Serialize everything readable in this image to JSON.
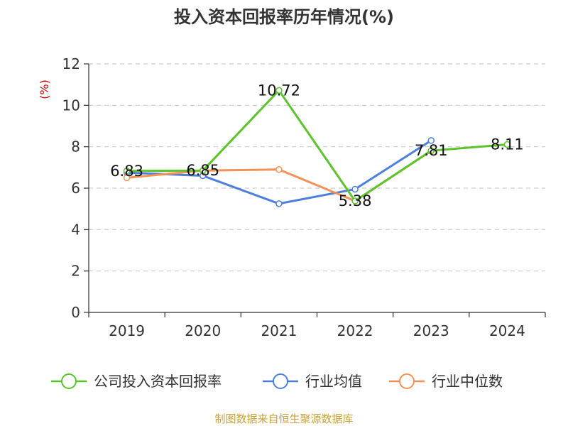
{
  "chart_data": {
    "type": "line",
    "title": "投入资本回报率历年情况(%)",
    "ylabel": "(%)",
    "xlabel": "",
    "categories": [
      "2019",
      "2020",
      "2021",
      "2022",
      "2023",
      "2024"
    ],
    "ylim": [
      0,
      12
    ],
    "yticks": [
      0,
      2,
      4,
      6,
      8,
      10,
      12
    ],
    "grid": true,
    "legend_position": "bottom",
    "series": [
      {
        "name": "公司投入资本回报率",
        "color": "#5cc42b",
        "values": [
          6.83,
          6.85,
          10.72,
          5.38,
          7.81,
          8.11
        ],
        "labels": [
          "6.83",
          "6.85",
          "10.72",
          "5.38",
          "7.81",
          "8.11"
        ]
      },
      {
        "name": "行业均值",
        "color": "#4e7fdc",
        "values": [
          6.75,
          6.6,
          5.25,
          5.95,
          8.3,
          null
        ]
      },
      {
        "name": "行业中位数",
        "color": "#f29256",
        "values": [
          6.5,
          6.85,
          6.9,
          5.38,
          7.8,
          null
        ]
      }
    ]
  },
  "source": "制图数据来自恒生聚源数据库",
  "colors": {
    "ylabel": "#cc0000",
    "source": "#c8a23a",
    "axis": "#333333",
    "grid": "#cccccc"
  }
}
